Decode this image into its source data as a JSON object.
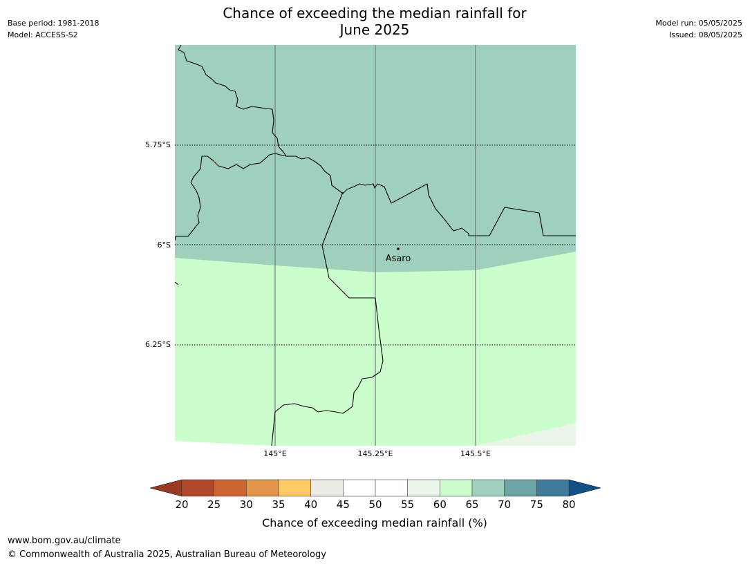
{
  "header": {
    "title_line1": "Chance of exceeding the median rainfall for",
    "title_line2": "June 2025",
    "base_period": "Base period: 1981-2018",
    "model": "Model: ACCESS-S2",
    "model_run": "Model run: 05/05/2025",
    "issued": "Issued: 08/05/2025"
  },
  "map": {
    "lat_labels": [
      "5.75°S",
      "6°S",
      "6.25°S"
    ],
    "lon_labels": [
      "145°E",
      "145.25°E",
      "145.5°E"
    ],
    "place": {
      "name": "Asaro"
    },
    "fill_colors": {
      "upper_zone": "#9fd0bb",
      "lower_zone": "#ccfdcc",
      "corner_zone": "#e9f5e9"
    }
  },
  "colorbar": {
    "title": "Chance of exceeding median rainfall (%)",
    "ticks": [
      "20",
      "25",
      "30",
      "35",
      "40",
      "45",
      "50",
      "55",
      "60",
      "65",
      "70",
      "75",
      "80"
    ],
    "under_color": "#9a3a23",
    "over_color": "#135088",
    "colors": [
      "#b0482b",
      "#ce6334",
      "#e3954a",
      "#fdca64",
      "#ede9e5",
      "#ffffff",
      "#ffffff",
      "#e9f5e9",
      "#ccfdcc",
      "#9fd0bb",
      "#6fa5a5",
      "#3f7a9a"
    ]
  },
  "footer": {
    "url": "www.bom.gov.au/climate",
    "copyright": "© Commonwealth of Australia 2025, Australian Bureau of Meteorology"
  }
}
